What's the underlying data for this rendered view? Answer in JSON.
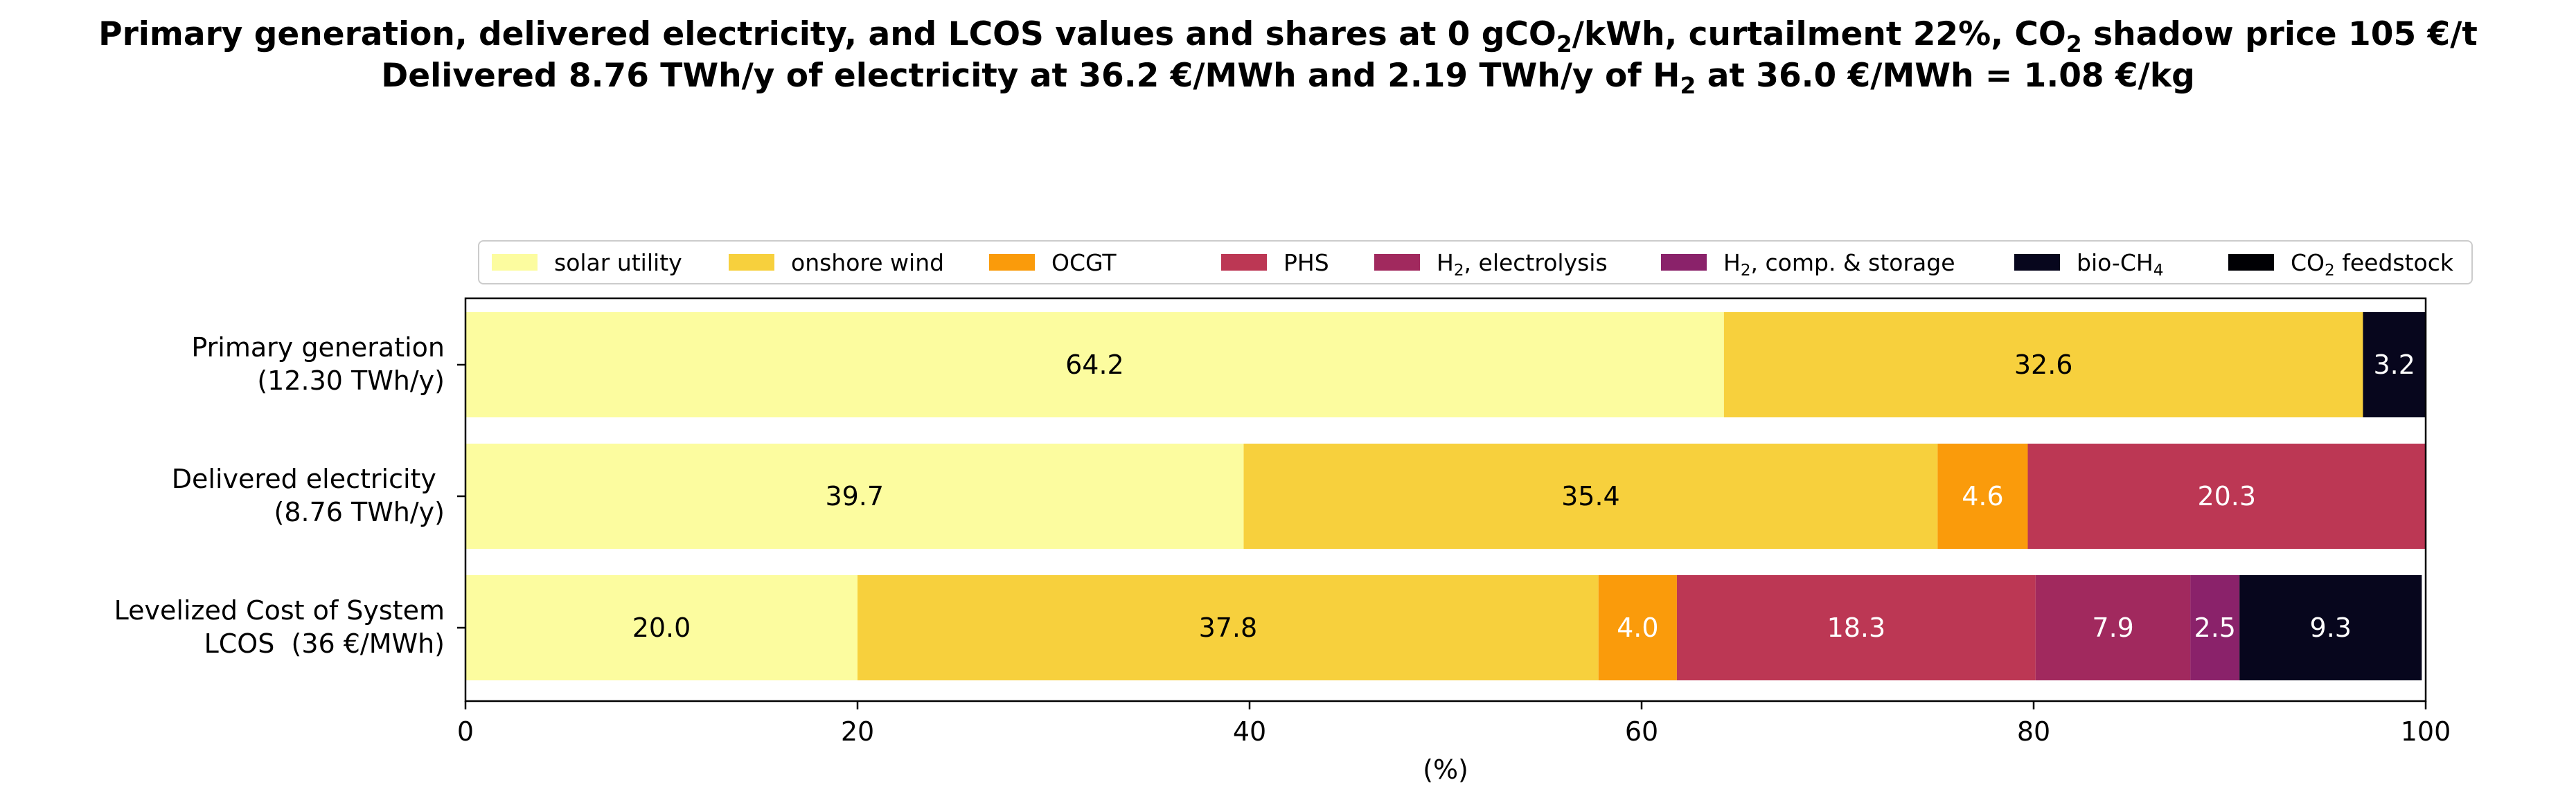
{
  "chart_data": {
    "type": "bar",
    "orientation": "horizontal",
    "stacked": true,
    "title_line1": [
      "Primary generation, delivered electricity, and LCOS values and shares at 0 gCO",
      "2",
      "/kWh, curtailment 22%, CO",
      "2",
      " shadow price 105 €/t"
    ],
    "title_line2": [
      "Delivered 8.76 TWh/y of electricity at 36.2 €/MWh and 2.19 TWh/y of H",
      "2",
      " at 36.0 €/MWh = 1.08 €/kg"
    ],
    "xlabel": "(%)",
    "xlim": [
      0,
      100
    ],
    "xticks": [
      "0",
      "20",
      "40",
      "60",
      "80",
      "100"
    ],
    "legend_position": "top",
    "categories": [
      "Primary generation\n(12.30 TWh/y)",
      "Delivered electricity \n(8.76 TWh/y)",
      "Levelized Cost of System\nLCOS  (36 €/MWh)"
    ],
    "series": [
      {
        "name": "solar utility",
        "sub": "",
        "suffix": "",
        "color": "#fcfc9f",
        "values": [
          64.2,
          39.7,
          20.0
        ],
        "labels": [
          "64.2",
          "39.7",
          "20.0"
        ],
        "text_color": "#000000"
      },
      {
        "name": "onshore wind",
        "sub": "",
        "suffix": "",
        "color": "#f7d03d",
        "values": [
          32.6,
          35.4,
          37.8
        ],
        "labels": [
          "32.6",
          "35.4",
          "37.8"
        ],
        "text_color": "#000000"
      },
      {
        "name": "OCGT",
        "sub": "",
        "suffix": "",
        "color": "#fa9b0b",
        "values": [
          0,
          4.6,
          4.0
        ],
        "labels": [
          "",
          "4.6",
          "4.0"
        ],
        "text_color": "#ffffff"
      },
      {
        "name": "PHS",
        "sub": "",
        "suffix": "",
        "color": "#bc3754",
        "values": [
          0,
          20.3,
          18.3
        ],
        "labels": [
          "",
          "20.3",
          "18.3"
        ],
        "text_color": "#ffffff"
      },
      {
        "name": "H",
        "sub": "2",
        "suffix": ", electrolysis",
        "color": "#a1295e",
        "values": [
          0,
          0,
          7.9
        ],
        "labels": [
          "",
          "",
          "7.9"
        ],
        "text_color": "#ffffff"
      },
      {
        "name": "H",
        "sub": "2",
        "suffix": ", comp. & storage",
        "color": "#8a226a",
        "values": [
          0,
          0,
          2.5
        ],
        "labels": [
          "",
          "",
          "2.5"
        ],
        "text_color": "#ffffff"
      },
      {
        "name": "bio-CH",
        "sub": "4",
        "suffix": "",
        "color": "#07061d",
        "values": [
          3.2,
          0,
          9.3
        ],
        "labels": [
          "3.2",
          "",
          "9.3"
        ],
        "text_color": "#ffffff"
      },
      {
        "name": "CO",
        "sub": "2",
        "suffix": " feedstock",
        "color": "#000004",
        "values": [
          0,
          0,
          0
        ],
        "labels": [
          "",
          "",
          ""
        ],
        "text_color": "#ffffff"
      }
    ]
  }
}
